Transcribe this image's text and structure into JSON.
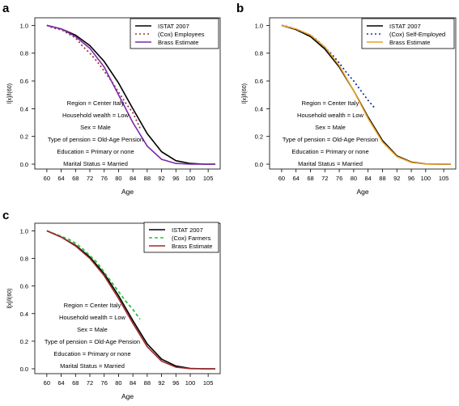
{
  "chart_data": [
    {
      "panel": "a",
      "type": "line",
      "xlabel": "Age",
      "ylabel": "l[x]/l(60)",
      "xlim": [
        58,
        107
      ],
      "ylim": [
        0,
        1.02
      ],
      "x_ticks": [
        "60",
        "64",
        "68",
        "72",
        "76",
        "80",
        "84",
        "88",
        "92",
        "96",
        "100",
        "105"
      ],
      "y_ticks": [
        "0.0",
        "0.2",
        "0.4",
        "0.6",
        "0.8",
        "1.0"
      ],
      "grid": false,
      "legend_position": "top-right",
      "legend": [
        "ISTAT 2007",
        "(Cox) Employees",
        "Brass Estimate"
      ],
      "annotations": [
        "Region = Center Italy",
        "Household wealth = Low",
        "Sex = Male",
        "Type of pension = Old-Age Pension",
        "Education = Primary or none",
        "Marital Status = Married"
      ],
      "series": [
        {
          "name": "ISTAT 2007",
          "color": "#000000",
          "style": "solid",
          "x": [
            60,
            64,
            68,
            72,
            76,
            80,
            84,
            88,
            92,
            96,
            100,
            104,
            107
          ],
          "y": [
            1.0,
            0.975,
            0.93,
            0.855,
            0.74,
            0.585,
            0.4,
            0.22,
            0.09,
            0.025,
            0.005,
            0.0,
            0.0
          ]
        },
        {
          "name": "(Cox) Employees",
          "color": "#a0304a",
          "style": "dotted",
          "x": [
            60,
            62,
            64,
            66,
            68,
            70,
            72,
            74,
            76,
            78,
            80,
            82,
            84,
            86
          ],
          "y": [
            1.0,
            0.98,
            0.97,
            0.94,
            0.91,
            0.85,
            0.8,
            0.74,
            0.67,
            0.6,
            0.52,
            0.44,
            0.37,
            0.26
          ]
        },
        {
          "name": "Brass Estimate",
          "color": "#7b2aa8",
          "style": "solid",
          "x": [
            60,
            64,
            68,
            72,
            76,
            80,
            84,
            88,
            92,
            96,
            100,
            104,
            107
          ],
          "y": [
            1.0,
            0.975,
            0.92,
            0.835,
            0.7,
            0.5,
            0.3,
            0.13,
            0.035,
            0.005,
            0.0,
            0.0,
            0.0
          ]
        }
      ]
    },
    {
      "panel": "b",
      "type": "line",
      "xlabel": "Age",
      "ylabel": "l[x]/l(60)",
      "xlim": [
        58,
        107
      ],
      "ylim": [
        0,
        1.02
      ],
      "x_ticks": [
        "60",
        "64",
        "68",
        "72",
        "76",
        "80",
        "84",
        "88",
        "92",
        "96",
        "100",
        "105"
      ],
      "y_ticks": [
        "0.0",
        "0.2",
        "0.4",
        "0.6",
        "0.8",
        "1.0"
      ],
      "grid": false,
      "legend_position": "top-right",
      "legend": [
        "ISTAT 2007",
        "(Cox) Self-Employed",
        "Brass Estimate"
      ],
      "annotations": [
        "Region = Center Italy",
        "Household wealth = Low",
        "Sex = Male",
        "Type of pension = Old-Age Pension",
        "Education = Primary or none",
        "Marital Status = Married"
      ],
      "series": [
        {
          "name": "ISTAT 2007",
          "color": "#000000",
          "style": "solid",
          "x": [
            60,
            64,
            68,
            72,
            76,
            80,
            84,
            88,
            92,
            96,
            100,
            104,
            107
          ],
          "y": [
            1.0,
            0.97,
            0.92,
            0.83,
            0.7,
            0.53,
            0.34,
            0.17,
            0.06,
            0.015,
            0.002,
            0.0,
            0.0
          ]
        },
        {
          "name": "(Cox) Self-Employed",
          "color": "#1a2fa0",
          "style": "dotted",
          "x": [
            60,
            62,
            64,
            66,
            68,
            70,
            72,
            74,
            76,
            78,
            80,
            82,
            84,
            86
          ],
          "y": [
            1.0,
            0.99,
            0.97,
            0.95,
            0.93,
            0.89,
            0.84,
            0.79,
            0.73,
            0.66,
            0.6,
            0.53,
            0.46,
            0.4
          ]
        },
        {
          "name": "Brass Estimate",
          "color": "#e8a020",
          "style": "solid",
          "x": [
            60,
            64,
            68,
            72,
            76,
            80,
            84,
            88,
            92,
            96,
            100,
            104,
            107
          ],
          "y": [
            1.0,
            0.975,
            0.93,
            0.845,
            0.71,
            0.53,
            0.33,
            0.16,
            0.055,
            0.012,
            0.001,
            0.0,
            0.0
          ]
        }
      ]
    },
    {
      "panel": "c",
      "type": "line",
      "xlabel": "Age",
      "ylabel": "l[x]/l(60)",
      "xlim": [
        58,
        107
      ],
      "ylim": [
        0,
        1.02
      ],
      "x_ticks": [
        "60",
        "64",
        "68",
        "72",
        "76",
        "80",
        "84",
        "88",
        "92",
        "96",
        "100",
        "105"
      ],
      "y_ticks": [
        "0.0",
        "0.2",
        "0.4",
        "0.6",
        "0.8",
        "1.0"
      ],
      "grid": false,
      "legend_position": "top-right",
      "legend": [
        "ISTAT 2007",
        "(Cox) Farmers",
        "Brass Estimate"
      ],
      "annotations": [
        "Region = Center Italy",
        "Household wealth = Low",
        "Sex = Male",
        "Type of pension = Old-Age Pension",
        "Education = Primary or none",
        "Marital Status = Married"
      ],
      "series": [
        {
          "name": "ISTAT 2007",
          "color": "#000000",
          "style": "solid",
          "x": [
            60,
            64,
            68,
            72,
            76,
            80,
            84,
            88,
            92,
            96,
            100,
            104,
            107
          ],
          "y": [
            1.0,
            0.955,
            0.895,
            0.81,
            0.69,
            0.53,
            0.35,
            0.18,
            0.07,
            0.02,
            0.003,
            0.0,
            0.0
          ]
        },
        {
          "name": "(Cox) Farmers",
          "color": "#2ec040",
          "style": "dashed",
          "x": [
            60,
            62,
            64,
            66,
            68,
            70,
            72,
            74,
            76,
            78,
            80,
            82,
            84,
            86
          ],
          "y": [
            1.0,
            0.98,
            0.96,
            0.94,
            0.91,
            0.87,
            0.82,
            0.77,
            0.7,
            0.63,
            0.56,
            0.49,
            0.43,
            0.36
          ]
        },
        {
          "name": "Brass Estimate",
          "color": "#a02a2a",
          "style": "solid",
          "x": [
            60,
            64,
            68,
            72,
            76,
            80,
            84,
            88,
            92,
            96,
            100,
            104,
            107
          ],
          "y": [
            1.0,
            0.955,
            0.89,
            0.8,
            0.675,
            0.51,
            0.33,
            0.16,
            0.055,
            0.012,
            0.001,
            0.0,
            0.0
          ]
        }
      ]
    }
  ]
}
